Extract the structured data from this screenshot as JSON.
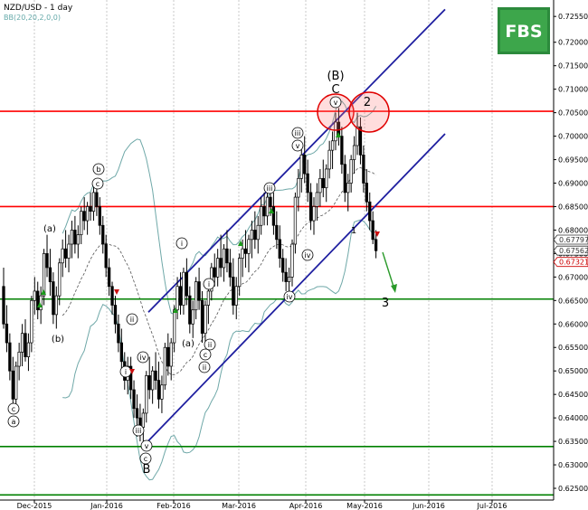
{
  "chart_data": {
    "type": "candlestick",
    "title": "NZD/USD - 1 day",
    "subtitle": "BB(20,20,2,0,0)",
    "logo": "FBS",
    "y_ticks": [
      "0.72550",
      "0.72000",
      "0.71500",
      "0.71000",
      "0.70500",
      "0.70000",
      "0.69500",
      "0.69000",
      "0.68500",
      "0.68000",
      "0.67500",
      "0.67000",
      "0.66500",
      "0.66000",
      "0.65500",
      "0.65000",
      "0.64500",
      "0.64000",
      "0.63500",
      "0.63000",
      "0.62500"
    ],
    "ylim": [
      0.6225,
      0.729
    ],
    "x_ticks": [
      "Dec-2015",
      "Jan-2016",
      "Feb-2016",
      "Mar-2016",
      "Apr-2016",
      "May-2016",
      "Jun-2016",
      "Jul-2016"
    ],
    "price_tags": [
      {
        "value": "0.67797",
        "price": 0.67797,
        "color": "#333333"
      },
      {
        "value": "0.67562",
        "price": 0.67562,
        "color": "#333333"
      },
      {
        "value": "0.67321",
        "price": 0.67321,
        "color": "#cc0000"
      }
    ],
    "horizontal_levels": [
      {
        "price": 0.7053,
        "color": "#ff0000"
      },
      {
        "price": 0.685,
        "color": "#ff0000"
      },
      {
        "price": 0.6653,
        "color": "#008000"
      },
      {
        "price": 0.6339,
        "color": "#008000"
      },
      {
        "price": 0.6236,
        "color": "#008000"
      }
    ],
    "channel": [
      {
        "from": [
          0.0,
          0.6625
        ],
        "to": [
          1.0,
          0.727
        ]
      },
      {
        "from": [
          0.0,
          0.6347
        ],
        "to": [
          1.0,
          0.7005
        ]
      }
    ],
    "wave_labels": [
      {
        "text": "(B)",
        "day": 108,
        "price": 0.7164
      },
      {
        "text": "C",
        "day": 108,
        "price": 0.7095
      },
      {
        "text": "2",
        "day": 118,
        "price": 0.7068
      },
      {
        "text": "3",
        "day": 126,
        "price": 0.663
      },
      {
        "text": "B",
        "day": 45,
        "price": 0.6298
      },
      {
        "text": "1",
        "day": 115,
        "price": 0.68
      }
    ],
    "circled_labels": [
      {
        "text": "v",
        "day": 108,
        "price": 0.706
      },
      {
        "text": "iii",
        "day": 95,
        "price": 0.7
      },
      {
        "text": "v",
        "day": 96,
        "price": 0.698
      },
      {
        "text": "iii",
        "day": 87,
        "price": 0.689
      },
      {
        "text": "i",
        "day": 58,
        "price": 0.6737
      },
      {
        "text": "i",
        "day": 66,
        "price": 0.6682
      },
      {
        "text": "ii",
        "day": 42,
        "price": 0.6593
      },
      {
        "text": "i",
        "day": 40,
        "price": 0.6507
      },
      {
        "text": "iv",
        "day": 45,
        "price": 0.6527
      },
      {
        "text": "iii",
        "day": 43,
        "price": 0.6395
      },
      {
        "text": "v",
        "day": 46,
        "price": 0.633
      },
      {
        "text": "c",
        "day": 46,
        "price": 0.632
      },
      {
        "text": "iv",
        "day": 99,
        "price": 0.676
      },
      {
        "text": "iv",
        "day": 93,
        "price": 0.6657
      },
      {
        "text": "ii",
        "day": 66,
        "price": 0.655
      },
      {
        "text": "ii",
        "day": 64,
        "price": 0.6505
      },
      {
        "text": "c",
        "day": 64,
        "price": 0.6525
      },
      {
        "text": "b",
        "day": 30,
        "price": 0.6942
      },
      {
        "text": "c",
        "day": 30,
        "price": 0.6918
      },
      {
        "text": "c",
        "day": 3,
        "price": 0.6404
      },
      {
        "text": "a",
        "day": 3,
        "price": 0.6385
      }
    ],
    "paren_labels": [
      {
        "text": "(a)",
        "day": 14,
        "price": 0.681
      },
      {
        "text": "(b)",
        "day": 17,
        "price": 0.6581
      },
      {
        "text": "(a)",
        "day": 60,
        "price": 0.655
      }
    ],
    "candles": [
      [
        0.668,
        0.672,
        0.659,
        0.66
      ],
      [
        0.66,
        0.664,
        0.654,
        0.656
      ],
      [
        0.656,
        0.658,
        0.648,
        0.65
      ],
      [
        0.65,
        0.653,
        0.642,
        0.644
      ],
      [
        0.644,
        0.652,
        0.642,
        0.651
      ],
      [
        0.651,
        0.656,
        0.648,
        0.654
      ],
      [
        0.654,
        0.66,
        0.651,
        0.658
      ],
      [
        0.658,
        0.661,
        0.652,
        0.653
      ],
      [
        0.653,
        0.658,
        0.65,
        0.656
      ],
      [
        0.656,
        0.666,
        0.654,
        0.665
      ],
      [
        0.665,
        0.67,
        0.662,
        0.667
      ],
      [
        0.667,
        0.669,
        0.661,
        0.663
      ],
      [
        0.663,
        0.668,
        0.66,
        0.666
      ],
      [
        0.666,
        0.676,
        0.664,
        0.675
      ],
      [
        0.675,
        0.679,
        0.67,
        0.672
      ],
      [
        0.672,
        0.676,
        0.666,
        0.669
      ],
      [
        0.669,
        0.671,
        0.66,
        0.662
      ],
      [
        0.662,
        0.668,
        0.659,
        0.666
      ],
      [
        0.666,
        0.674,
        0.664,
        0.673
      ],
      [
        0.673,
        0.678,
        0.67,
        0.676
      ],
      [
        0.676,
        0.68,
        0.672,
        0.674
      ],
      [
        0.674,
        0.679,
        0.671,
        0.677
      ],
      [
        0.677,
        0.682,
        0.674,
        0.68
      ],
      [
        0.68,
        0.683,
        0.675,
        0.677
      ],
      [
        0.677,
        0.681,
        0.674,
        0.679
      ],
      [
        0.679,
        0.685,
        0.677,
        0.684
      ],
      [
        0.684,
        0.687,
        0.68,
        0.682
      ],
      [
        0.682,
        0.686,
        0.679,
        0.685
      ],
      [
        0.685,
        0.688,
        0.682,
        0.684
      ],
      [
        0.684,
        0.69,
        0.682,
        0.688
      ],
      [
        0.688,
        0.69,
        0.683,
        0.685
      ],
      [
        0.685,
        0.687,
        0.679,
        0.681
      ],
      [
        0.681,
        0.683,
        0.675,
        0.677
      ],
      [
        0.677,
        0.679,
        0.67,
        0.672
      ],
      [
        0.672,
        0.674,
        0.666,
        0.668
      ],
      [
        0.668,
        0.669,
        0.662,
        0.664
      ],
      [
        0.664,
        0.666,
        0.658,
        0.66
      ],
      [
        0.66,
        0.662,
        0.654,
        0.656
      ],
      [
        0.656,
        0.659,
        0.65,
        0.652
      ],
      [
        0.652,
        0.654,
        0.646,
        0.648
      ],
      [
        0.648,
        0.653,
        0.645,
        0.651
      ],
      [
        0.651,
        0.653,
        0.644,
        0.646
      ],
      [
        0.646,
        0.648,
        0.64,
        0.642
      ],
      [
        0.642,
        0.645,
        0.636,
        0.64
      ],
      [
        0.64,
        0.643,
        0.635,
        0.638
      ],
      [
        0.638,
        0.642,
        0.635,
        0.641
      ],
      [
        0.641,
        0.65,
        0.639,
        0.649
      ],
      [
        0.649,
        0.653,
        0.644,
        0.646
      ],
      [
        0.646,
        0.651,
        0.643,
        0.65
      ],
      [
        0.65,
        0.654,
        0.646,
        0.648
      ],
      [
        0.648,
        0.652,
        0.642,
        0.644
      ],
      [
        0.644,
        0.649,
        0.641,
        0.647
      ],
      [
        0.647,
        0.656,
        0.646,
        0.655
      ],
      [
        0.655,
        0.658,
        0.649,
        0.651
      ],
      [
        0.651,
        0.657,
        0.648,
        0.656
      ],
      [
        0.656,
        0.664,
        0.654,
        0.663
      ],
      [
        0.663,
        0.67,
        0.661,
        0.668
      ],
      [
        0.668,
        0.671,
        0.662,
        0.664
      ],
      [
        0.664,
        0.672,
        0.662,
        0.671
      ],
      [
        0.671,
        0.674,
        0.664,
        0.666
      ],
      [
        0.666,
        0.668,
        0.658,
        0.66
      ],
      [
        0.66,
        0.665,
        0.657,
        0.663
      ],
      [
        0.663,
        0.67,
        0.661,
        0.669
      ],
      [
        0.669,
        0.672,
        0.663,
        0.665
      ],
      [
        0.665,
        0.667,
        0.656,
        0.658
      ],
      [
        0.658,
        0.665,
        0.656,
        0.664
      ],
      [
        0.664,
        0.669,
        0.66,
        0.667
      ],
      [
        0.667,
        0.673,
        0.665,
        0.672
      ],
      [
        0.672,
        0.675,
        0.668,
        0.67
      ],
      [
        0.67,
        0.676,
        0.668,
        0.674
      ],
      [
        0.674,
        0.679,
        0.67,
        0.672
      ],
      [
        0.672,
        0.677,
        0.669,
        0.676
      ],
      [
        0.676,
        0.68,
        0.671,
        0.673
      ],
      [
        0.673,
        0.676,
        0.668,
        0.67
      ],
      [
        0.67,
        0.674,
        0.662,
        0.664
      ],
      [
        0.664,
        0.67,
        0.661,
        0.668
      ],
      [
        0.668,
        0.675,
        0.666,
        0.674
      ],
      [
        0.674,
        0.678,
        0.67,
        0.676
      ],
      [
        0.676,
        0.68,
        0.672,
        0.675
      ],
      [
        0.675,
        0.679,
        0.671,
        0.678
      ],
      [
        0.678,
        0.682,
        0.674,
        0.68
      ],
      [
        0.68,
        0.684,
        0.676,
        0.678
      ],
      [
        0.678,
        0.683,
        0.675,
        0.681
      ],
      [
        0.681,
        0.687,
        0.679,
        0.685
      ],
      [
        0.685,
        0.688,
        0.681,
        0.683
      ],
      [
        0.683,
        0.689,
        0.681,
        0.687
      ],
      [
        0.687,
        0.69,
        0.683,
        0.685
      ],
      [
        0.685,
        0.688,
        0.679,
        0.681
      ],
      [
        0.681,
        0.684,
        0.676,
        0.678
      ],
      [
        0.678,
        0.681,
        0.672,
        0.674
      ],
      [
        0.674,
        0.676,
        0.669,
        0.671
      ],
      [
        0.671,
        0.674,
        0.667,
        0.669
      ],
      [
        0.669,
        0.672,
        0.665,
        0.67
      ],
      [
        0.67,
        0.678,
        0.668,
        0.677
      ],
      [
        0.677,
        0.688,
        0.675,
        0.687
      ],
      [
        0.687,
        0.693,
        0.684,
        0.691
      ],
      [
        0.691,
        0.698,
        0.688,
        0.696
      ],
      [
        0.696,
        0.7,
        0.69,
        0.692
      ],
      [
        0.692,
        0.695,
        0.686,
        0.688
      ],
      [
        0.688,
        0.69,
        0.68,
        0.682
      ],
      [
        0.682,
        0.687,
        0.679,
        0.685
      ],
      [
        0.685,
        0.69,
        0.682,
        0.688
      ],
      [
        0.688,
        0.693,
        0.685,
        0.691
      ],
      [
        0.691,
        0.695,
        0.687,
        0.689
      ],
      [
        0.689,
        0.694,
        0.686,
        0.693
      ],
      [
        0.693,
        0.699,
        0.691,
        0.697
      ],
      [
        0.697,
        0.701,
        0.693,
        0.699
      ],
      [
        0.699,
        0.705,
        0.697,
        0.703
      ],
      [
        0.703,
        0.706,
        0.698,
        0.7
      ],
      [
        0.7,
        0.702,
        0.692,
        0.694
      ],
      [
        0.694,
        0.696,
        0.686,
        0.688
      ],
      [
        0.688,
        0.692,
        0.684,
        0.69
      ],
      [
        0.69,
        0.696,
        0.688,
        0.695
      ],
      [
        0.695,
        0.7,
        0.692,
        0.698
      ],
      [
        0.698,
        0.705,
        0.696,
        0.702
      ],
      [
        0.702,
        0.704,
        0.694,
        0.696
      ],
      [
        0.696,
        0.698,
        0.688,
        0.69
      ],
      [
        0.69,
        0.693,
        0.684,
        0.686
      ],
      [
        0.686,
        0.688,
        0.68,
        0.682
      ],
      [
        0.682,
        0.684,
        0.677,
        0.678
      ],
      [
        0.678,
        0.68,
        0.674,
        0.6756
      ]
    ]
  }
}
